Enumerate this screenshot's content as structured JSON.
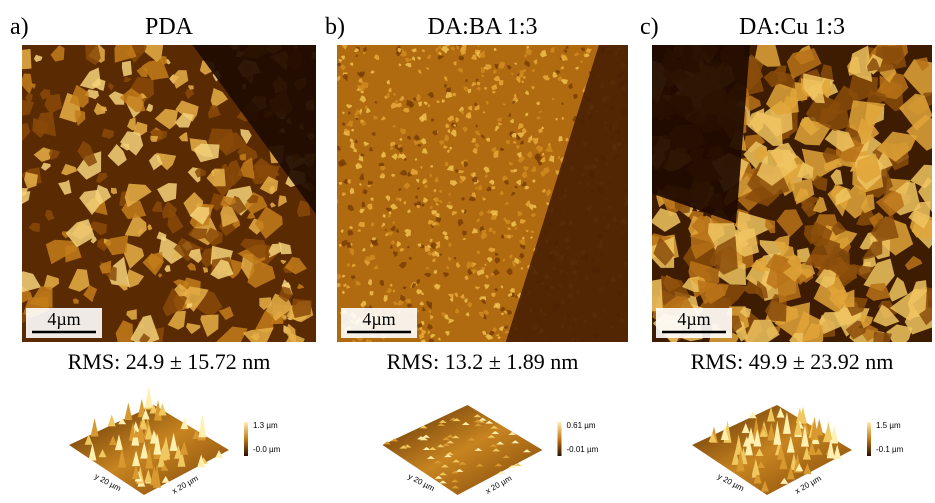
{
  "panels": [
    {
      "label": "a)",
      "title": "PDA",
      "scale_bar": "4µm",
      "rms": "RMS: 24.9 ± 15.72 nm",
      "render": {
        "z_max": "1.3 µm",
        "z_min": "-0.0 µm",
        "y_axis": "y 20 µm",
        "x_axis": "x 20 µm"
      }
    },
    {
      "label": "b)",
      "title": "DA:BA 1:3",
      "scale_bar": "4µm",
      "rms": "RMS: 13.2 ± 1.89 nm",
      "render": {
        "z_max": "0.61 µm",
        "z_min": "-0.01 µm",
        "y_axis": "y 20 µm",
        "x_axis": "x 20 µm"
      }
    },
    {
      "label": "c)",
      "title": "DA:Cu 1:3",
      "scale_bar": "4µm",
      "rms": "RMS: 49.9 ± 23.92 nm",
      "render": {
        "z_max": "1.5 µm",
        "z_min": "-0.1 µm",
        "y_axis": "y 20 µm",
        "x_axis": "x 20 µm"
      }
    }
  ]
}
